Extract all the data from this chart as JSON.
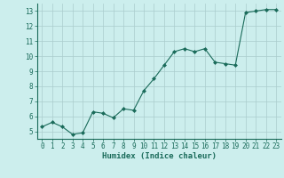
{
  "x": [
    0,
    1,
    2,
    3,
    4,
    5,
    6,
    7,
    8,
    9,
    10,
    11,
    12,
    13,
    14,
    15,
    16,
    17,
    18,
    19,
    20,
    21,
    22,
    23
  ],
  "y": [
    5.3,
    5.6,
    5.3,
    4.8,
    4.9,
    6.3,
    6.2,
    5.9,
    6.5,
    6.4,
    7.7,
    8.5,
    9.4,
    10.3,
    10.5,
    10.3,
    10.5,
    9.6,
    9.5,
    9.4,
    12.9,
    13.0,
    13.1,
    13.1
  ],
  "line_color": "#1a6b5a",
  "marker": "D",
  "marker_size": 2.0,
  "bg_color": "#cceeed",
  "grid_color": "#aacccc",
  "axis_label_color": "#1a6b5a",
  "tick_label_color": "#1a6b5a",
  "xlabel": "Humidex (Indice chaleur)",
  "xlim": [
    -0.5,
    23.5
  ],
  "ylim": [
    4.5,
    13.5
  ],
  "yticks": [
    5,
    6,
    7,
    8,
    9,
    10,
    11,
    12,
    13
  ],
  "xticks": [
    0,
    1,
    2,
    3,
    4,
    5,
    6,
    7,
    8,
    9,
    10,
    11,
    12,
    13,
    14,
    15,
    16,
    17,
    18,
    19,
    20,
    21,
    22,
    23
  ],
  "tick_fontsize": 5.5,
  "label_fontsize": 6.5
}
